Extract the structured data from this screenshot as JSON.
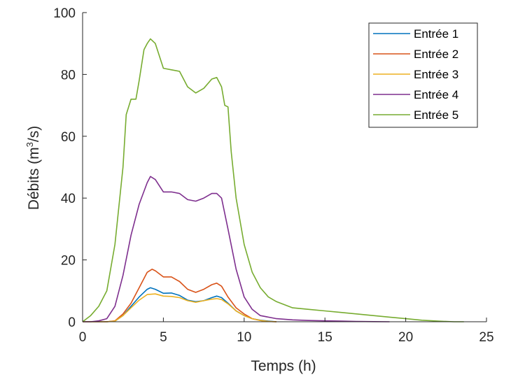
{
  "chart_data": {
    "type": "line",
    "xlabel": "Temps (h)",
    "ylabel": {
      "main": "Débits (m",
      "sup": "3",
      "tail": "/s)"
    },
    "xlim": [
      0,
      25
    ],
    "ylim": [
      0,
      100
    ],
    "xticks": [
      0,
      5,
      10,
      15,
      20,
      25
    ],
    "yticks": [
      0,
      20,
      40,
      60,
      80,
      100
    ],
    "grid": false,
    "legend_position": "top-right",
    "series": [
      {
        "name": "Entrée 1",
        "color": "#0072BD",
        "x": [
          0,
          1,
          1.5,
          2,
          2.5,
          3,
          3.5,
          4,
          4.2,
          4.5,
          5,
          5.5,
          6,
          6.5,
          7,
          7.5,
          8,
          8.3,
          8.6,
          9,
          9.5,
          10,
          10.5,
          11,
          11.5,
          12
        ],
        "y": [
          0,
          0,
          0,
          0.2,
          2,
          5,
          8,
          10.5,
          11,
          10.5,
          9.2,
          9.3,
          8.5,
          7,
          6.5,
          6.8,
          7.8,
          8.3,
          7.8,
          6,
          3.5,
          2,
          1,
          0.5,
          0.2,
          0
        ]
      },
      {
        "name": "Entrée 2",
        "color": "#D95319",
        "x": [
          0,
          1,
          1.5,
          2,
          2.5,
          3,
          3.5,
          4,
          4.3,
          4.5,
          5,
          5.5,
          6,
          6.5,
          7,
          7.5,
          8,
          8.3,
          8.6,
          9,
          9.5,
          10,
          10.5,
          11,
          11.5,
          12
        ],
        "y": [
          0,
          0,
          0,
          0.3,
          2.5,
          6,
          11,
          16,
          17,
          16.5,
          14.5,
          14.5,
          13,
          10.5,
          9.5,
          10.5,
          12,
          12.5,
          11.5,
          8,
          4.5,
          2.5,
          1,
          0.4,
          0.1,
          0
        ]
      },
      {
        "name": "Entrée 3",
        "color": "#EDB120",
        "x": [
          0,
          1,
          1.5,
          2,
          2.5,
          3,
          3.5,
          4,
          4.5,
          5,
          5.5,
          6,
          6.5,
          7,
          7.5,
          8,
          8.3,
          8.6,
          9,
          9.5,
          10,
          10.5,
          11,
          11.5,
          12
        ],
        "y": [
          0,
          0,
          0,
          0.2,
          2,
          4.5,
          7,
          8.8,
          9,
          8.3,
          8.2,
          7.8,
          6.8,
          6.3,
          6.8,
          7.3,
          7.5,
          7.2,
          5.8,
          3.5,
          2,
          1,
          0.4,
          0.1,
          0
        ]
      },
      {
        "name": "Entrée 4",
        "color": "#7E2F8E",
        "x": [
          0,
          0.5,
          1,
          1.5,
          2,
          2.5,
          3,
          3.5,
          4,
          4.2,
          4.5,
          5,
          5.5,
          6,
          6.5,
          7,
          7.5,
          8,
          8.3,
          8.6,
          9,
          9.5,
          10,
          10.5,
          11,
          12,
          13,
          14,
          15,
          16,
          17,
          18,
          19
        ],
        "y": [
          0,
          0,
          0.3,
          1,
          5,
          15,
          28,
          38,
          45,
          47,
          46,
          42,
          42,
          41.5,
          39.5,
          39,
          40,
          41.5,
          41.5,
          40,
          30,
          17,
          8,
          4,
          2,
          1,
          0.6,
          0.4,
          0.3,
          0.2,
          0.1,
          0.05,
          0
        ]
      },
      {
        "name": "Entrée 5",
        "color": "#77AC30",
        "x": [
          0,
          0.5,
          1,
          1.5,
          2,
          2.5,
          2.7,
          3,
          3.3,
          3.5,
          3.8,
          4,
          4.2,
          4.5,
          5,
          5.5,
          6,
          6.5,
          7,
          7.5,
          8,
          8.3,
          8.6,
          8.8,
          9,
          9.2,
          9.5,
          10,
          10.5,
          11,
          11.5,
          12,
          13,
          14,
          15,
          16,
          17,
          18,
          19,
          20,
          21,
          22,
          23,
          23.6
        ],
        "y": [
          0,
          2,
          5,
          10,
          25,
          50,
          67,
          72,
          72,
          78,
          88,
          90,
          91.5,
          90,
          82,
          81.5,
          81,
          76,
          74,
          75.5,
          78.5,
          79,
          76,
          70,
          69.5,
          55,
          40,
          25,
          16,
          11,
          8,
          6.5,
          4.5,
          4,
          3.5,
          3,
          2.5,
          2,
          1.5,
          1,
          0.5,
          0.2,
          0,
          0
        ]
      }
    ]
  }
}
